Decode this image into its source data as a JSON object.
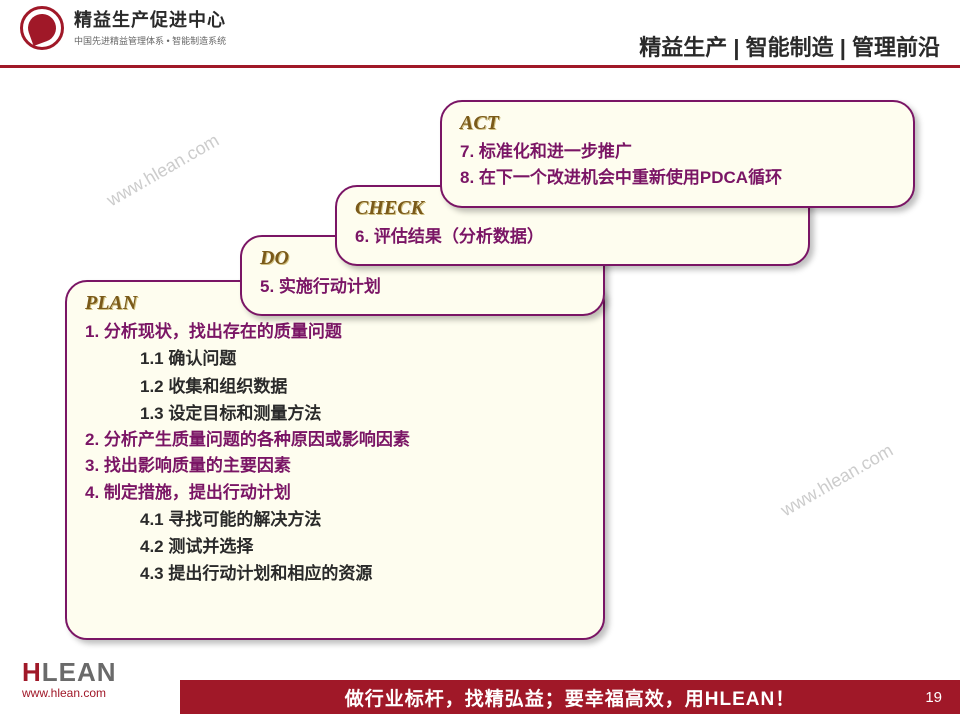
{
  "header": {
    "logo_cn": "精益生产促进中心",
    "logo_sub": "中国先进精益管理体系 • 智能制造系统",
    "right_text": "精益生产 | 智能制造 | 管理前沿"
  },
  "watermark": "www.hlean.com",
  "cards": {
    "act": {
      "title": "ACT",
      "lines": [
        "7. 标准化和进一步推广",
        "8. 在下一个改进机会中重新使用PDCA循环"
      ]
    },
    "check": {
      "title": "CHECK",
      "lines": [
        "6. 评估结果（分析数据）"
      ]
    },
    "do": {
      "title": "DO",
      "lines": [
        "5. 实施行动计划"
      ]
    },
    "plan": {
      "title": "PLAN",
      "item1": "1. 分析现状，找出存在的质量问题",
      "sub11": "1.1 确认问题",
      "sub12": "1.2 收集和组织数据",
      "sub13": "1.3 设定目标和测量方法",
      "item2": "2. 分析产生质量问题的各种原因或影响因素",
      "item3": "3. 找出影响质量的主要因素",
      "item4": "4. 制定措施，提出行动计划",
      "sub41": "4.1 寻找可能的解决方法",
      "sub42": "4.2 测试并选择",
      "sub43": "4.3 提出行动计划和相应的资源"
    }
  },
  "footer": {
    "brand_h": "H",
    "brand_lean": "LEAN",
    "url": "www.hlean.com",
    "slogan": "做行业标杆，找精弘益；要幸福高效，用HLEAN！",
    "page": "19"
  },
  "colors": {
    "accent_red": "#a01828",
    "card_border": "#7a1565",
    "card_bg": "#fefdef",
    "title_olive": "#7a5a1a"
  }
}
